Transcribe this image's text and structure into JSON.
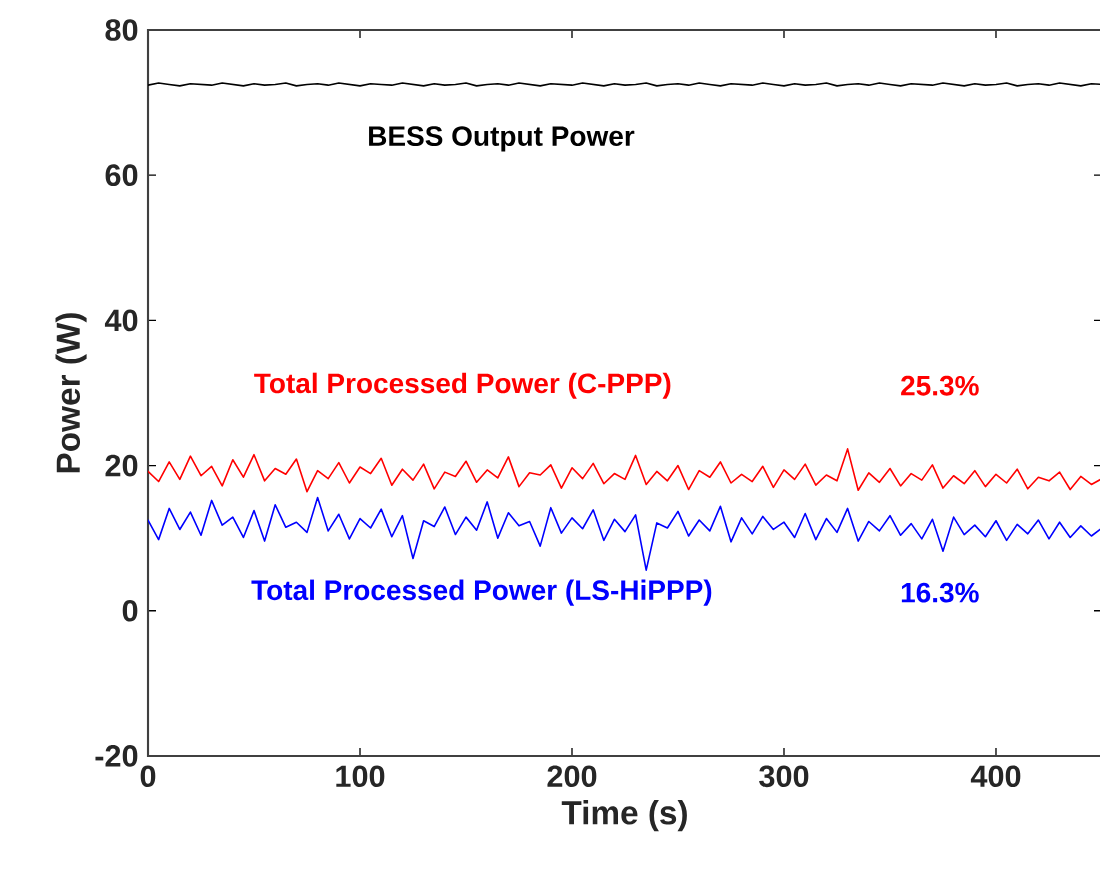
{
  "chart_data": {
    "type": "line",
    "xlabel": "Time (s)",
    "ylabel": "Power (W)",
    "xlim": [
      0,
      450
    ],
    "ylim": [
      -20,
      80
    ],
    "xticks": [
      0,
      100,
      200,
      300,
      400
    ],
    "yticks": [
      -20,
      0,
      20,
      40,
      60,
      80
    ],
    "marker": "none",
    "x": [
      0,
      5,
      10,
      15,
      20,
      25,
      30,
      35,
      40,
      45,
      50,
      55,
      60,
      65,
      70,
      75,
      80,
      85,
      90,
      95,
      100,
      105,
      110,
      115,
      120,
      125,
      130,
      135,
      140,
      145,
      150,
      155,
      160,
      165,
      170,
      175,
      180,
      185,
      190,
      195,
      200,
      205,
      210,
      215,
      220,
      225,
      230,
      235,
      240,
      245,
      250,
      255,
      260,
      265,
      270,
      275,
      280,
      285,
      290,
      295,
      300,
      305,
      310,
      315,
      320,
      325,
      330,
      335,
      340,
      345,
      350,
      355,
      360,
      365,
      370,
      375,
      380,
      385,
      390,
      395,
      400,
      405,
      410,
      415,
      420,
      425,
      430,
      435,
      440,
      445,
      450
    ],
    "series": [
      {
        "name": "BESS Output Power",
        "color": "#000000",
        "values": [
          72.4,
          72.7,
          72.5,
          72.3,
          72.6,
          72.5,
          72.4,
          72.7,
          72.5,
          72.3,
          72.6,
          72.4,
          72.5,
          72.7,
          72.3,
          72.5,
          72.6,
          72.4,
          72.7,
          72.5,
          72.3,
          72.6,
          72.5,
          72.4,
          72.7,
          72.5,
          72.3,
          72.6,
          72.4,
          72.5,
          72.7,
          72.3,
          72.5,
          72.6,
          72.4,
          72.7,
          72.5,
          72.3,
          72.6,
          72.5,
          72.4,
          72.7,
          72.5,
          72.3,
          72.6,
          72.4,
          72.5,
          72.7,
          72.3,
          72.5,
          72.6,
          72.4,
          72.7,
          72.5,
          72.3,
          72.6,
          72.5,
          72.4,
          72.7,
          72.5,
          72.3,
          72.6,
          72.4,
          72.5,
          72.7,
          72.3,
          72.5,
          72.6,
          72.4,
          72.7,
          72.5,
          72.3,
          72.6,
          72.5,
          72.4,
          72.7,
          72.5,
          72.3,
          72.6,
          72.4,
          72.5,
          72.7,
          72.3,
          72.5,
          72.6,
          72.4,
          72.7,
          72.5,
          72.3,
          72.6,
          72.5
        ]
      },
      {
        "name": "Total Processed Power (C-PPP)",
        "color": "#ff0000",
        "values": [
          19.2,
          17.8,
          20.5,
          18.1,
          21.3,
          18.6,
          19.9,
          17.2,
          20.8,
          18.4,
          21.5,
          17.9,
          19.6,
          18.8,
          20.9,
          16.4,
          19.3,
          18.2,
          20.4,
          17.6,
          19.8,
          18.9,
          21.0,
          17.3,
          19.5,
          18.0,
          20.2,
          16.8,
          19.1,
          18.5,
          20.6,
          17.7,
          19.4,
          18.3,
          21.2,
          17.1,
          19.0,
          18.7,
          20.1,
          16.9,
          19.7,
          18.2,
          20.3,
          17.5,
          18.9,
          18.1,
          21.4,
          17.4,
          19.2,
          17.9,
          20.0,
          16.7,
          19.3,
          18.4,
          20.5,
          17.6,
          18.8,
          17.8,
          19.9,
          17.0,
          19.4,
          18.1,
          20.2,
          17.3,
          18.7,
          17.9,
          22.3,
          16.6,
          19.0,
          17.7,
          19.6,
          17.2,
          18.9,
          18.0,
          20.1,
          16.9,
          18.6,
          17.5,
          19.3,
          17.1,
          18.8,
          17.6,
          19.5,
          16.8,
          18.4,
          17.9,
          19.1,
          16.7,
          18.5,
          17.4,
          18.2
        ]
      },
      {
        "name": "Total Processed Power (LS-HiPPP)",
        "color": "#0000ff",
        "values": [
          12.5,
          9.8,
          14.1,
          11.2,
          13.6,
          10.4,
          15.2,
          11.8,
          12.9,
          10.1,
          13.8,
          9.6,
          14.6,
          11.5,
          12.2,
          10.8,
          15.6,
          11.0,
          13.3,
          9.9,
          12.7,
          11.4,
          14.0,
          10.2,
          13.1,
          7.2,
          12.4,
          11.6,
          14.3,
          10.5,
          12.9,
          11.1,
          15.0,
          10.0,
          13.5,
          11.7,
          12.3,
          8.9,
          14.2,
          10.7,
          12.8,
          11.3,
          13.9,
          9.7,
          12.6,
          10.9,
          13.2,
          5.6,
          12.1,
          11.4,
          13.7,
          10.3,
          12.5,
          11.0,
          14.4,
          9.5,
          12.8,
          10.6,
          13.0,
          11.2,
          12.2,
          10.1,
          13.4,
          9.8,
          12.7,
          10.8,
          14.1,
          9.6,
          12.3,
          11.0,
          13.1,
          10.4,
          12.0,
          9.9,
          12.6,
          8.2,
          12.9,
          10.5,
          11.8,
          10.2,
          12.4,
          9.7,
          11.9,
          10.6,
          12.5,
          9.9,
          12.2,
          10.1,
          11.7,
          10.3,
          11.4
        ]
      }
    ],
    "annotations": [
      "25.3%",
      "16.3%"
    ]
  }
}
